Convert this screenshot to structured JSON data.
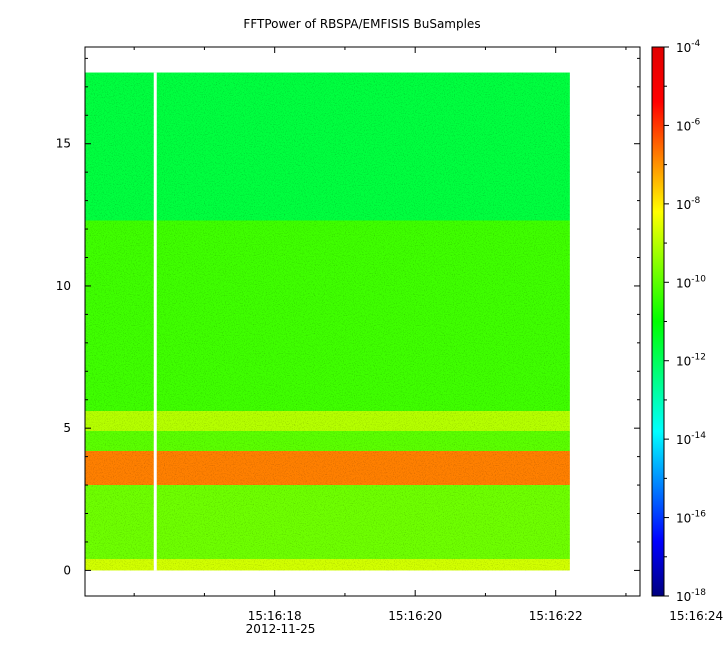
{
  "chart_data": {
    "type": "heatmap",
    "title": "FFTPower of RBSPA/EMFISIS  BuSamples",
    "xlabel": "",
    "ylabel": "",
    "x_ticks": [
      "15:16:18",
      "15:16:20",
      "15:16:22",
      "15:16:24"
    ],
    "x_date": "2012-11-25",
    "x_range_seconds": [
      15.3,
      23.2
    ],
    "data_x_extent_seconds": [
      15.3,
      22.2
    ],
    "y_range": [
      -0.9,
      18.4
    ],
    "y_ticks": [
      0,
      5,
      10,
      15
    ],
    "data_y_extent": [
      0,
      17.5
    ],
    "gap_at_seconds": 16.3,
    "colorbar": {
      "scale": "log",
      "range": [
        1e-18,
        0.0001
      ],
      "base_label": "10",
      "exponents": [
        "-4",
        "-6",
        "-8",
        "-10",
        "-12",
        "-14",
        "-16",
        "-18"
      ],
      "colormap": [
        "#00007f",
        "#0000ff",
        "#0080ff",
        "#00ffff",
        "#00ff80",
        "#00ff00",
        "#80ff00",
        "#ffff00",
        "#ff8000",
        "#ff0000",
        "#e00000"
      ]
    },
    "bands": [
      {
        "y_from": 12.3,
        "y_to": 17.5,
        "level_log10": -11.7
      },
      {
        "y_from": 5.6,
        "y_to": 12.3,
        "level_log10": -10.3
      },
      {
        "y_from": 4.9,
        "y_to": 5.6,
        "level_log10": -9.0
      },
      {
        "y_from": 4.2,
        "y_to": 4.9,
        "level_log10": -10.0
      },
      {
        "y_from": 3.0,
        "y_to": 4.2,
        "level_log10": -6.8
      },
      {
        "y_from": 0.4,
        "y_to": 3.0,
        "level_log10": -9.8
      },
      {
        "y_from": 0.0,
        "y_to": 0.4,
        "level_log10": -8.7
      }
    ],
    "grid": false,
    "legend": "colorbar-right"
  }
}
